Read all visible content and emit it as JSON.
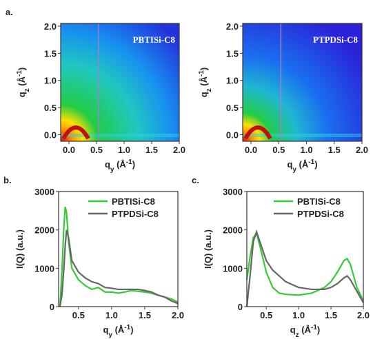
{
  "chart_data": [
    {
      "type": "heatmap",
      "panel": "a.",
      "annotation": "PBTISi-C8",
      "xlim": [
        -0.15,
        2.0
      ],
      "ylim": [
        -0.12,
        2.05
      ],
      "xticks": [
        {
          "value": 0,
          "label": "0.0"
        },
        0.5,
        {
          "value": 1,
          "label": "1.0"
        },
        1.5,
        {
          "value": 2,
          "label": "2.0"
        }
      ],
      "yticks": [
        {
          "value": 0,
          "label": "0.0"
        },
        0.5,
        {
          "value": 1,
          "label": "1.0"
        },
        1.5,
        {
          "value": 2,
          "label": "2.0"
        }
      ],
      "xlabel": [
        {
          "text": "q"
        },
        {
          "text": "y",
          "sub": true
        },
        {
          "text": " (Å"
        },
        {
          "text": "-1",
          "sup": true
        },
        {
          "text": ")"
        }
      ],
      "ylabel": [
        {
          "text": "q"
        },
        {
          "text": "z",
          "sub": true
        },
        {
          "text": " (Å"
        },
        {
          "text": "-1",
          "sup": true
        },
        {
          "text": ")"
        }
      ]
    },
    {
      "type": "heatmap",
      "annotation": "PTPDSi-C8",
      "xlim": [
        -0.15,
        2.0
      ],
      "ylim": [
        -0.12,
        2.05
      ],
      "xticks": [
        {
          "value": 0,
          "label": "0.0"
        },
        0.5,
        {
          "value": 1,
          "label": "1.0"
        },
        1.5,
        {
          "value": 2,
          "label": "2.0"
        }
      ],
      "yticks": [
        {
          "value": 0,
          "label": "0.0"
        },
        0.5,
        {
          "value": 1,
          "label": "1.0"
        },
        1.5,
        {
          "value": 2,
          "label": "2.0"
        }
      ],
      "xlabel": [
        {
          "text": "q"
        },
        {
          "text": "y",
          "sub": true
        },
        {
          "text": " (Å"
        },
        {
          "text": "-1",
          "sup": true
        },
        {
          "text": ")"
        }
      ],
      "ylabel": [
        {
          "text": "q"
        },
        {
          "text": "z",
          "sub": true
        },
        {
          "text": " (Å"
        },
        {
          "text": "-1",
          "sup": true
        },
        {
          "text": ")"
        }
      ]
    },
    {
      "type": "line",
      "panel": "b.",
      "legend": "top-right",
      "xlim": [
        0.2,
        2.0
      ],
      "ylim": [
        0,
        3000
      ],
      "xticks": [
        0.5,
        {
          "value": 1,
          "label": "1.0"
        },
        1.5,
        {
          "value": 2,
          "label": "2.0"
        }
      ],
      "yticks": [
        0,
        1000,
        2000,
        3000
      ],
      "xlabel": [
        {
          "text": "q"
        },
        {
          "text": "y",
          "sub": true
        },
        {
          "text": " (Å"
        },
        {
          "text": "-1",
          "sup": true
        },
        {
          "text": ")"
        }
      ],
      "ylabel": [
        {
          "text": "I(Q) (a.u.)"
        }
      ],
      "x": [
        0.22,
        0.25,
        0.28,
        0.3,
        0.32,
        0.35,
        0.4,
        0.5,
        0.6,
        0.7,
        0.8,
        0.9,
        1.0,
        1.1,
        1.2,
        1.3,
        1.4,
        1.5,
        1.6,
        1.7,
        1.8,
        1.9,
        2.0
      ],
      "series": [
        {
          "name": "PBTISi-C8",
          "color": "#33cc33",
          "values": [
            0,
            900,
            2100,
            2600,
            2450,
            1700,
            1000,
            700,
            550,
            450,
            500,
            380,
            380,
            350,
            380,
            420,
            400,
            380,
            350,
            300,
            250,
            200,
            120
          ]
        },
        {
          "name": "PTPDSi-C8",
          "color": "#666666",
          "values": [
            0,
            300,
            1000,
            1600,
            2000,
            1800,
            1200,
            900,
            750,
            650,
            600,
            500,
            480,
            450,
            450,
            450,
            450,
            420,
            380,
            300,
            250,
            150,
            80
          ]
        }
      ]
    },
    {
      "type": "line",
      "panel": "c.",
      "legend": "top-right",
      "xlim": [
        0.2,
        2.0
      ],
      "ylim": [
        0,
        3000
      ],
      "xticks": [
        0.5,
        {
          "value": 1,
          "label": "1.0"
        },
        1.5,
        {
          "value": 2,
          "label": "2.0"
        }
      ],
      "yticks": [
        0,
        1000,
        2000,
        3000
      ],
      "xlabel": [
        {
          "text": "q"
        },
        {
          "text": "z",
          "sub": true
        },
        {
          "text": " (Å"
        },
        {
          "text": "-1",
          "sup": true
        },
        {
          "text": ")"
        }
      ],
      "ylabel": [
        {
          "text": "I(Q) (a.u.)"
        }
      ],
      "x": [
        0.2,
        0.25,
        0.3,
        0.35,
        0.4,
        0.5,
        0.6,
        0.7,
        0.8,
        1.0,
        1.2,
        1.4,
        1.5,
        1.6,
        1.7,
        1.75,
        1.8,
        1.9,
        2.0
      ],
      "series": [
        {
          "name": "PBTISi-C8",
          "color": "#33cc33",
          "values": [
            700,
            1300,
            1800,
            1900,
            1600,
            900,
            500,
            350,
            320,
            300,
            350,
            500,
            650,
            900,
            1200,
            1250,
            1100,
            500,
            150
          ]
        },
        {
          "name": "PTPDSi-C8",
          "color": "#666666",
          "values": [
            0,
            800,
            1700,
            1950,
            1700,
            1200,
            950,
            800,
            650,
            500,
            450,
            450,
            500,
            600,
            750,
            800,
            700,
            400,
            100
          ]
        }
      ]
    }
  ]
}
